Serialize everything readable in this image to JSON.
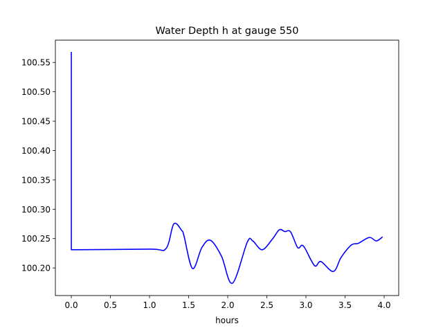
{
  "chart_data": {
    "type": "line",
    "title": "Water Depth h at gauge 550",
    "xlabel": "hours",
    "ylabel": "",
    "xlim": [
      -0.204,
      4.186
    ],
    "ylim": [
      100.153,
      100.588
    ],
    "xticks": [
      0.0,
      0.5,
      1.0,
      1.5,
      2.0,
      2.5,
      3.0,
      3.5,
      4.0
    ],
    "xtick_labels": [
      "0.0",
      "0.5",
      "1.0",
      "1.5",
      "2.0",
      "2.5",
      "3.0",
      "3.5",
      "4.0"
    ],
    "yticks": [
      100.2,
      100.25,
      100.3,
      100.35,
      100.4,
      100.45,
      100.5,
      100.55
    ],
    "ytick_labels": [
      "100.20",
      "100.25",
      "100.30",
      "100.35",
      "100.40",
      "100.45",
      "100.50",
      "100.55"
    ],
    "grid": false,
    "series": [
      {
        "name": "h",
        "color": "#0000ff",
        "x": [
          0.0,
          0.0,
          1.0,
          1.21,
          1.31,
          1.41,
          1.44,
          1.55,
          1.67,
          1.78,
          1.92,
          2.06,
          2.25,
          2.32,
          2.44,
          2.57,
          2.66,
          2.73,
          2.8,
          2.88,
          2.91,
          2.97,
          3.11,
          3.19,
          3.35,
          3.45,
          3.58,
          3.67,
          3.81,
          3.9,
          3.98
        ],
        "y": [
          100.568,
          100.231,
          100.232,
          100.233,
          100.275,
          100.264,
          100.255,
          100.199,
          100.235,
          100.247,
          100.22,
          100.174,
          100.244,
          100.246,
          100.231,
          100.249,
          100.265,
          100.262,
          100.262,
          100.238,
          100.234,
          100.237,
          100.204,
          100.211,
          100.194,
          100.218,
          100.239,
          100.242,
          100.252,
          100.246,
          100.253
        ]
      }
    ]
  }
}
